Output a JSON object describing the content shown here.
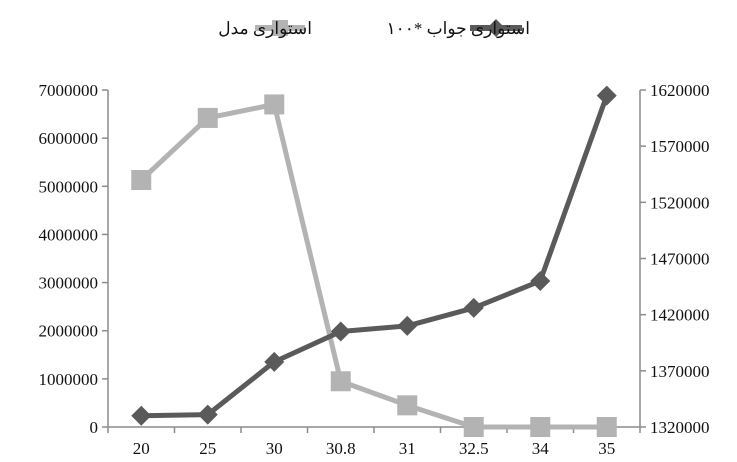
{
  "chart_data": {
    "type": "line",
    "categories": [
      "20",
      "25",
      "30",
      "30.8",
      "31",
      "32.5",
      "34",
      "35"
    ],
    "series": [
      {
        "name": "استواری مدل",
        "axis": "left",
        "color": "#b3b3b3",
        "marker": "square",
        "values": [
          5130000,
          6420000,
          6700000,
          950000,
          450000,
          0,
          0,
          0
        ]
      },
      {
        "name": "استواری جواب *۱۰۰",
        "axis": "right",
        "color": "#5a5a5a",
        "marker": "diamond",
        "values": [
          1330000,
          1331000,
          1378000,
          1405000,
          1410000,
          1426000,
          1450000,
          1615000
        ]
      }
    ],
    "left_axis": {
      "ylim": [
        0,
        7000000
      ],
      "ticks": [
        "0",
        "1000000",
        "2000000",
        "3000000",
        "4000000",
        "5000000",
        "6000000",
        "7000000"
      ]
    },
    "right_axis": {
      "ylim": [
        1320000,
        1620000
      ],
      "ticks": [
        "1320000",
        "1370000",
        "1420000",
        "1470000",
        "1520000",
        "1570000",
        "1620000"
      ]
    },
    "grid": false,
    "legend_position": "top"
  }
}
